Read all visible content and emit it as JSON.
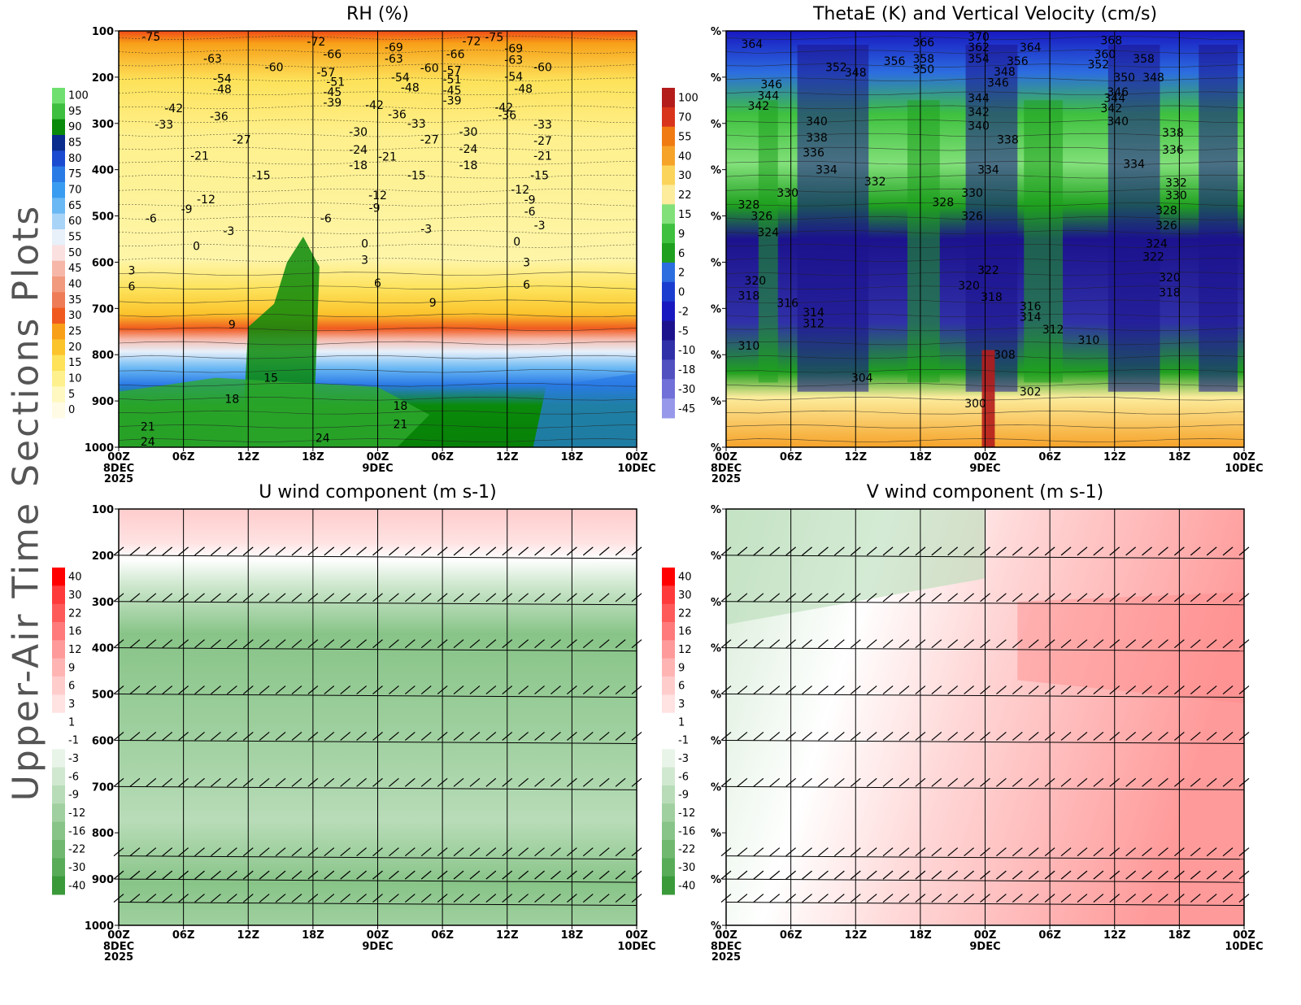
{
  "page_title": "Upper-Air Time Sections Plots",
  "time_ticks": [
    "00Z",
    "06Z",
    "12Z",
    "18Z",
    "00Z",
    "06Z",
    "12Z",
    "18Z",
    "00Z"
  ],
  "date_labels": [
    {
      "tick": 0,
      "lines": [
        "8DEC",
        "2025"
      ]
    },
    {
      "tick": 4,
      "lines": [
        "9DEC"
      ]
    },
    {
      "tick": 8,
      "lines": [
        "10DEC"
      ]
    }
  ],
  "pressure_levels": [
    100,
    200,
    300,
    400,
    500,
    600,
    700,
    800,
    900,
    1000
  ],
  "colors": {
    "wind_green": "#4aa64a",
    "wind_red": "#ff0000"
  },
  "chart_data": [
    {
      "id": "rh",
      "type": "heatmap",
      "title": "RH (%)",
      "ylabel_ticks": [
        "100",
        "200",
        "300",
        "400",
        "500",
        "600",
        "700",
        "800",
        "900",
        "1000"
      ],
      "ylim": [
        100,
        1000
      ],
      "colorbar": {
        "labels": [
          "100",
          "95",
          "90",
          "85",
          "80",
          "75",
          "70",
          "65",
          "60",
          "55",
          "50",
          "45",
          "40",
          "35",
          "30",
          "25",
          "20",
          "15",
          "10",
          "5",
          "0"
        ],
        "colors": [
          "#6fe06f",
          "#3fbf3f",
          "#0a8a0a",
          "#0a2c8c",
          "#1a4ad0",
          "#2a7ae6",
          "#3a9cf0",
          "#6ab8f4",
          "#a8d4f8",
          "#e8f0fa",
          "#fbe0e0",
          "#f6b7a8",
          "#f29a7e",
          "#ee7c56",
          "#f05a1f",
          "#f7a018",
          "#fbc32c",
          "#fde25a",
          "#fef08c",
          "#fff8c0",
          "#fffbe4"
        ]
      },
      "contour_labels": [
        {
          "t": 0.5,
          "p": 112,
          "v": "-75"
        },
        {
          "t": 1.45,
          "p": 160,
          "v": "-63"
        },
        {
          "t": 2.4,
          "p": 178,
          "v": "-60"
        },
        {
          "t": 1.6,
          "p": 203,
          "v": "-54"
        },
        {
          "t": 1.6,
          "p": 226,
          "v": "-48"
        },
        {
          "t": 0.85,
          "p": 267,
          "v": "-42"
        },
        {
          "t": 1.55,
          "p": 285,
          "v": "-36"
        },
        {
          "t": 0.7,
          "p": 302,
          "v": "-33"
        },
        {
          "t": 1.9,
          "p": 335,
          "v": "-27"
        },
        {
          "t": 1.25,
          "p": 370,
          "v": "-21"
        },
        {
          "t": 2.2,
          "p": 412,
          "v": "-15"
        },
        {
          "t": 1.35,
          "p": 464,
          "v": "-12"
        },
        {
          "t": 1.05,
          "p": 485,
          "v": "-9"
        },
        {
          "t": 0.5,
          "p": 505,
          "v": "-6"
        },
        {
          "t": 1.7,
          "p": 532,
          "v": "-3"
        },
        {
          "t": 1.2,
          "p": 565,
          "v": "0"
        },
        {
          "t": 0.2,
          "p": 618,
          "v": "3"
        },
        {
          "t": 0.2,
          "p": 652,
          "v": "6"
        },
        {
          "t": 1.75,
          "p": 735,
          "v": "9"
        },
        {
          "t": 2.35,
          "p": 850,
          "v": "15"
        },
        {
          "t": 1.75,
          "p": 895,
          "v": "18"
        },
        {
          "t": 0.45,
          "p": 955,
          "v": "21"
        },
        {
          "t": 0.45,
          "p": 988,
          "v": "24"
        },
        {
          "t": 3.05,
          "p": 123,
          "v": "-72"
        },
        {
          "t": 3.3,
          "p": 150,
          "v": "-66"
        },
        {
          "t": 3.2,
          "p": 190,
          "v": "-57"
        },
        {
          "t": 3.35,
          "p": 210,
          "v": "-51"
        },
        {
          "t": 3.3,
          "p": 232,
          "v": "-45"
        },
        {
          "t": 3.3,
          "p": 255,
          "v": "-39"
        },
        {
          "t": 4.25,
          "p": 135,
          "v": "-69"
        },
        {
          "t": 4.25,
          "p": 160,
          "v": "-63"
        },
        {
          "t": 3.95,
          "p": 260,
          "v": "-42"
        },
        {
          "t": 4.3,
          "p": 280,
          "v": "-36"
        },
        {
          "t": 4.35,
          "p": 200,
          "v": "-54"
        },
        {
          "t": 4.5,
          "p": 222,
          "v": "-48"
        },
        {
          "t": 4.8,
          "p": 180,
          "v": "-60"
        },
        {
          "t": 4.6,
          "p": 300,
          "v": "-33"
        },
        {
          "t": 4.8,
          "p": 335,
          "v": "-27"
        },
        {
          "t": 3.7,
          "p": 318,
          "v": "-30"
        },
        {
          "t": 3.7,
          "p": 357,
          "v": "-24"
        },
        {
          "t": 4.15,
          "p": 372,
          "v": "-21"
        },
        {
          "t": 3.7,
          "p": 390,
          "v": "-18"
        },
        {
          "t": 4.6,
          "p": 412,
          "v": "-15"
        },
        {
          "t": 4.0,
          "p": 455,
          "v": "-12"
        },
        {
          "t": 3.95,
          "p": 482,
          "v": "-9"
        },
        {
          "t": 3.2,
          "p": 505,
          "v": "-6"
        },
        {
          "t": 4.75,
          "p": 528,
          "v": "-3"
        },
        {
          "t": 3.8,
          "p": 560,
          "v": "0"
        },
        {
          "t": 3.8,
          "p": 595,
          "v": "3"
        },
        {
          "t": 4.0,
          "p": 645,
          "v": "6"
        },
        {
          "t": 4.85,
          "p": 687,
          "v": "9"
        },
        {
          "t": 4.35,
          "p": 910,
          "v": "18"
        },
        {
          "t": 4.35,
          "p": 950,
          "v": "21"
        },
        {
          "t": 3.15,
          "p": 980,
          "v": "24"
        },
        {
          "t": 5.45,
          "p": 122,
          "v": "-72"
        },
        {
          "t": 5.8,
          "p": 113,
          "v": "-75"
        },
        {
          "t": 5.2,
          "p": 150,
          "v": "-66"
        },
        {
          "t": 5.15,
          "p": 185,
          "v": "-57"
        },
        {
          "t": 5.15,
          "p": 205,
          "v": "-51"
        },
        {
          "t": 5.15,
          "p": 228,
          "v": "-45"
        },
        {
          "t": 5.15,
          "p": 250,
          "v": "-39"
        },
        {
          "t": 5.4,
          "p": 318,
          "v": "-30"
        },
        {
          "t": 5.4,
          "p": 355,
          "v": "-24"
        },
        {
          "t": 5.4,
          "p": 390,
          "v": "-18"
        },
        {
          "t": 6.1,
          "p": 138,
          "v": "-69"
        },
        {
          "t": 6.1,
          "p": 162,
          "v": "-63"
        },
        {
          "t": 6.55,
          "p": 178,
          "v": "-60"
        },
        {
          "t": 6.1,
          "p": 198,
          "v": "-54"
        },
        {
          "t": 6.25,
          "p": 225,
          "v": "-48"
        },
        {
          "t": 5.95,
          "p": 265,
          "v": "-42"
        },
        {
          "t": 6.0,
          "p": 282,
          "v": "-36"
        },
        {
          "t": 6.55,
          "p": 302,
          "v": "-33"
        },
        {
          "t": 6.55,
          "p": 337,
          "v": "-27"
        },
        {
          "t": 6.55,
          "p": 370,
          "v": "-21"
        },
        {
          "t": 6.5,
          "p": 412,
          "v": "-15"
        },
        {
          "t": 6.2,
          "p": 443,
          "v": "-12"
        },
        {
          "t": 6.35,
          "p": 465,
          "v": "-9"
        },
        {
          "t": 6.35,
          "p": 490,
          "v": "-6"
        },
        {
          "t": 6.5,
          "p": 520,
          "v": "-3"
        },
        {
          "t": 6.15,
          "p": 555,
          "v": "0"
        },
        {
          "t": 6.3,
          "p": 600,
          "v": "3"
        },
        {
          "t": 6.3,
          "p": 648,
          "v": "6"
        }
      ]
    },
    {
      "id": "thetae",
      "type": "heatmap",
      "title": "ThetaE (K) and Vertical Velocity (cm/s)",
      "ylabel_ticks": [
        "%",
        "%",
        "%",
        "%",
        "%",
        "%",
        "%",
        "%",
        "%",
        "%"
      ],
      "ylim": [
        100,
        1000
      ],
      "colorbar": {
        "labels": [
          "100",
          "70",
          "55",
          "40",
          "30",
          "22",
          "15",
          "9",
          "6",
          "2",
          "0",
          "-2",
          "-5",
          "-10",
          "-18",
          "-30",
          "-45"
        ],
        "colors": [
          "#b41c1c",
          "#d8341c",
          "#f07b12",
          "#f6a32a",
          "#fbd45c",
          "#fcec9c",
          "#82e07a",
          "#3fc13f",
          "#1fa01f",
          "#2c6de0",
          "#1a3dd0",
          "#1818c0",
          "#1c128e",
          "#3030a8",
          "#5050c0",
          "#7070d8",
          "#9898ea"
        ]
      },
      "contour_labels": [
        {
          "t": 0.4,
          "p": 128,
          "v": "364"
        },
        {
          "t": 1.7,
          "p": 178,
          "v": "352"
        },
        {
          "t": 2.0,
          "p": 190,
          "v": "348"
        },
        {
          "t": 2.6,
          "p": 165,
          "v": "356"
        },
        {
          "t": 3.05,
          "p": 125,
          "v": "366"
        },
        {
          "t": 3.05,
          "p": 160,
          "v": "358"
        },
        {
          "t": 3.05,
          "p": 183,
          "v": "350"
        },
        {
          "t": 0.7,
          "p": 215,
          "v": "346"
        },
        {
          "t": 0.65,
          "p": 240,
          "v": "344"
        },
        {
          "t": 0.5,
          "p": 262,
          "v": "342"
        },
        {
          "t": 1.4,
          "p": 295,
          "v": "340"
        },
        {
          "t": 1.4,
          "p": 330,
          "v": "338"
        },
        {
          "t": 1.35,
          "p": 363,
          "v": "336"
        },
        {
          "t": 1.55,
          "p": 400,
          "v": "334"
        },
        {
          "t": 2.3,
          "p": 425,
          "v": "332"
        },
        {
          "t": 0.95,
          "p": 450,
          "v": "330"
        },
        {
          "t": 0.35,
          "p": 475,
          "v": "328"
        },
        {
          "t": 0.55,
          "p": 500,
          "v": "326"
        },
        {
          "t": 0.65,
          "p": 535,
          "v": "324"
        },
        {
          "t": 0.45,
          "p": 640,
          "v": "320"
        },
        {
          "t": 0.35,
          "p": 672,
          "v": "318"
        },
        {
          "t": 0.95,
          "p": 688,
          "v": "316"
        },
        {
          "t": 1.35,
          "p": 708,
          "v": "314"
        },
        {
          "t": 1.35,
          "p": 732,
          "v": "312"
        },
        {
          "t": 0.35,
          "p": 780,
          "v": "310"
        },
        {
          "t": 2.1,
          "p": 850,
          "v": "304"
        },
        {
          "t": 3.9,
          "p": 112,
          "v": "370"
        },
        {
          "t": 3.9,
          "p": 135,
          "v": "362"
        },
        {
          "t": 3.9,
          "p": 160,
          "v": "354"
        },
        {
          "t": 4.2,
          "p": 212,
          "v": "346"
        },
        {
          "t": 3.9,
          "p": 245,
          "v": "344"
        },
        {
          "t": 3.9,
          "p": 275,
          "v": "342"
        },
        {
          "t": 3.9,
          "p": 305,
          "v": "340"
        },
        {
          "t": 4.35,
          "p": 335,
          "v": "338"
        },
        {
          "t": 4.05,
          "p": 400,
          "v": "334"
        },
        {
          "t": 3.8,
          "p": 450,
          "v": "330"
        },
        {
          "t": 3.35,
          "p": 470,
          "v": "328"
        },
        {
          "t": 3.8,
          "p": 500,
          "v": "326"
        },
        {
          "t": 4.05,
          "p": 617,
          "v": "322"
        },
        {
          "t": 3.75,
          "p": 650,
          "v": "320"
        },
        {
          "t": 4.1,
          "p": 675,
          "v": "318"
        },
        {
          "t": 4.7,
          "p": 135,
          "v": "364"
        },
        {
          "t": 4.5,
          "p": 165,
          "v": "356"
        },
        {
          "t": 4.3,
          "p": 188,
          "v": "348"
        },
        {
          "t": 5.95,
          "p": 120,
          "v": "368"
        },
        {
          "t": 5.85,
          "p": 150,
          "v": "360"
        },
        {
          "t": 5.75,
          "p": 172,
          "v": "352"
        },
        {
          "t": 6.05,
          "p": 232,
          "v": "346"
        },
        {
          "t": 6.15,
          "p": 200,
          "v": "350"
        },
        {
          "t": 6.6,
          "p": 200,
          "v": "348"
        },
        {
          "t": 6.45,
          "p": 160,
          "v": "358"
        },
        {
          "t": 6.0,
          "p": 245,
          "v": "344"
        },
        {
          "t": 5.95,
          "p": 267,
          "v": "342"
        },
        {
          "t": 6.05,
          "p": 295,
          "v": "340"
        },
        {
          "t": 6.9,
          "p": 320,
          "v": "338"
        },
        {
          "t": 6.9,
          "p": 357,
          "v": "336"
        },
        {
          "t": 6.3,
          "p": 387,
          "v": "334"
        },
        {
          "t": 6.95,
          "p": 428,
          "v": "332"
        },
        {
          "t": 6.95,
          "p": 455,
          "v": "330"
        },
        {
          "t": 6.8,
          "p": 488,
          "v": "328"
        },
        {
          "t": 6.8,
          "p": 520,
          "v": "326"
        },
        {
          "t": 6.65,
          "p": 560,
          "v": "324"
        },
        {
          "t": 6.6,
          "p": 588,
          "v": "322"
        },
        {
          "t": 6.85,
          "p": 633,
          "v": "320"
        },
        {
          "t": 6.85,
          "p": 665,
          "v": "318"
        },
        {
          "t": 4.7,
          "p": 695,
          "v": "316"
        },
        {
          "t": 4.7,
          "p": 718,
          "v": "314"
        },
        {
          "t": 5.05,
          "p": 745,
          "v": "312"
        },
        {
          "t": 5.6,
          "p": 768,
          "v": "310"
        },
        {
          "t": 4.3,
          "p": 800,
          "v": "308"
        },
        {
          "t": 4.7,
          "p": 880,
          "v": "302"
        },
        {
          "t": 3.85,
          "p": 905,
          "v": "300"
        }
      ]
    },
    {
      "id": "uwind",
      "type": "heatmap",
      "title": "U wind component (m s-1)",
      "ylabel_ticks": [
        "100",
        "200",
        "300",
        "400",
        "500",
        "600",
        "700",
        "800",
        "900",
        "1000"
      ],
      "ylim": [
        100,
        1000
      ],
      "colorbar": {
        "labels": [
          "40",
          "30",
          "22",
          "16",
          "12",
          "9",
          "6",
          "3",
          "1",
          "-1",
          "-3",
          "-6",
          "-9",
          "-12",
          "-16",
          "-22",
          "-30",
          "-40"
        ],
        "colors": [
          "#ff0000",
          "#ff3a3a",
          "#ff5a5a",
          "#ff7a7a",
          "#ff9a9a",
          "#ffb4b4",
          "#ffcccc",
          "#ffe2e2",
          "#ffffff",
          "#ffffff",
          "#e8f4e8",
          "#d0e8d0",
          "#b8dcb8",
          "#a0d0a0",
          "#88c488",
          "#70b870",
          "#58ac58",
          "#3a9a3a"
        ]
      },
      "barb_levels": [
        200,
        300,
        400,
        500,
        600,
        700,
        850,
        900,
        950
      ]
    },
    {
      "id": "vwind",
      "type": "heatmap",
      "title": "V wind component (m s-1)",
      "ylabel_ticks": [
        "%",
        "%",
        "%",
        "%",
        "%",
        "%",
        "%",
        "%",
        "%",
        "%"
      ],
      "ylim": [
        100,
        1000
      ],
      "colorbar": {
        "labels": [
          "40",
          "30",
          "22",
          "16",
          "12",
          "9",
          "6",
          "3",
          "1",
          "-1",
          "-3",
          "-6",
          "-9",
          "-12",
          "-16",
          "-22",
          "-30",
          "-40"
        ],
        "colors": [
          "#ff0000",
          "#ff3a3a",
          "#ff5a5a",
          "#ff7a7a",
          "#ff9a9a",
          "#ffb4b4",
          "#ffcccc",
          "#ffe2e2",
          "#ffffff",
          "#ffffff",
          "#e8f4e8",
          "#d0e8d0",
          "#b8dcb8",
          "#a0d0a0",
          "#88c488",
          "#70b870",
          "#58ac58",
          "#3a9a3a"
        ]
      },
      "barb_levels": [
        200,
        300,
        400,
        500,
        600,
        700,
        850,
        900,
        950
      ]
    }
  ]
}
